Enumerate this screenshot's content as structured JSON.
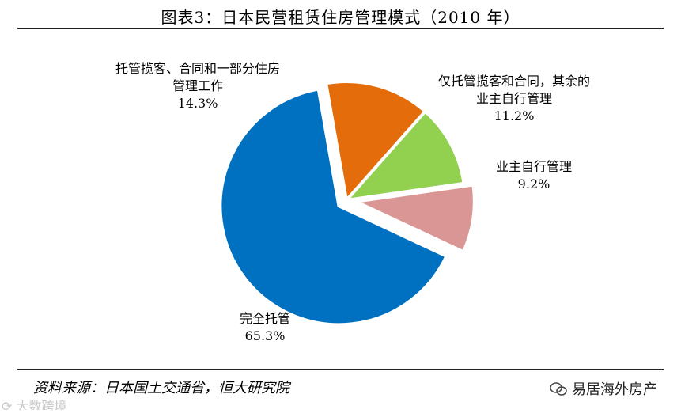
{
  "title": "图表3：日本民营租赁住房管理模式（2010 年）",
  "source": "资料来源：日本国土交通省，恒大研究院",
  "watermark_left": "大数跨境",
  "watermark_right": "易居海外房产",
  "chart_data": {
    "type": "pie",
    "title": "图表3：日本民营租赁住房管理模式（2010 年）",
    "start_angle_deg": -25,
    "direction": "counterclockwise",
    "slices": [
      {
        "label_lines": [
          "业主自行管理"
        ],
        "value": 9.2,
        "value_label": "9.2%",
        "color": "#da9694",
        "exploded": true
      },
      {
        "label_lines": [
          "仅托管揽客和合同，其余的",
          "业主自行管理"
        ],
        "value": 11.2,
        "value_label": "11.2%",
        "color": "#92d050",
        "exploded": false
      },
      {
        "label_lines": [
          "托管揽客、合同和一部分住房",
          "管理工作"
        ],
        "value": 14.3,
        "value_label": "14.3%",
        "color": "#e46c0a",
        "exploded": false
      },
      {
        "label_lines": [
          "完全托管"
        ],
        "value": 65.3,
        "value_label": "65.3%",
        "color": "#0070c0",
        "exploded": true
      }
    ]
  }
}
